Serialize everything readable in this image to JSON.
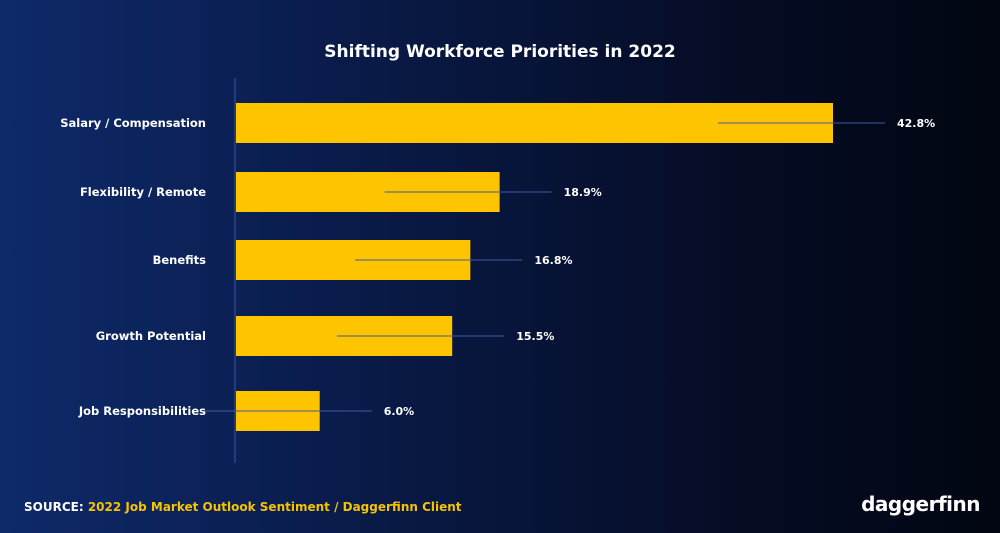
{
  "colors": {
    "bar": "#ffc400",
    "axis": "#3d5a99",
    "leader": "#3f5aa0",
    "text": "#ffffff",
    "accent": "#f7c200"
  },
  "chart_data": {
    "type": "bar",
    "orientation": "horizontal",
    "title": "Shifting Workforce Priorities in 2022",
    "categories": [
      "Salary / Compensation",
      "Flexibility / Remote",
      "Benefits",
      "Growth Potential",
      "Job Responsibilities"
    ],
    "values": [
      42.8,
      18.9,
      16.8,
      15.5,
      6.0
    ],
    "value_labels": [
      "42.8%",
      "18.9%",
      "16.8%",
      "15.5%",
      "6.0%"
    ],
    "xlim": [
      0,
      45
    ],
    "grid": false,
    "legend": "none"
  },
  "footer": {
    "source_prefix": "SOURCE:",
    "source_text": "2022 Job Market Outlook Sentiment / Daggerfinn Client"
  },
  "brand": {
    "logo": "daggerfinn"
  }
}
